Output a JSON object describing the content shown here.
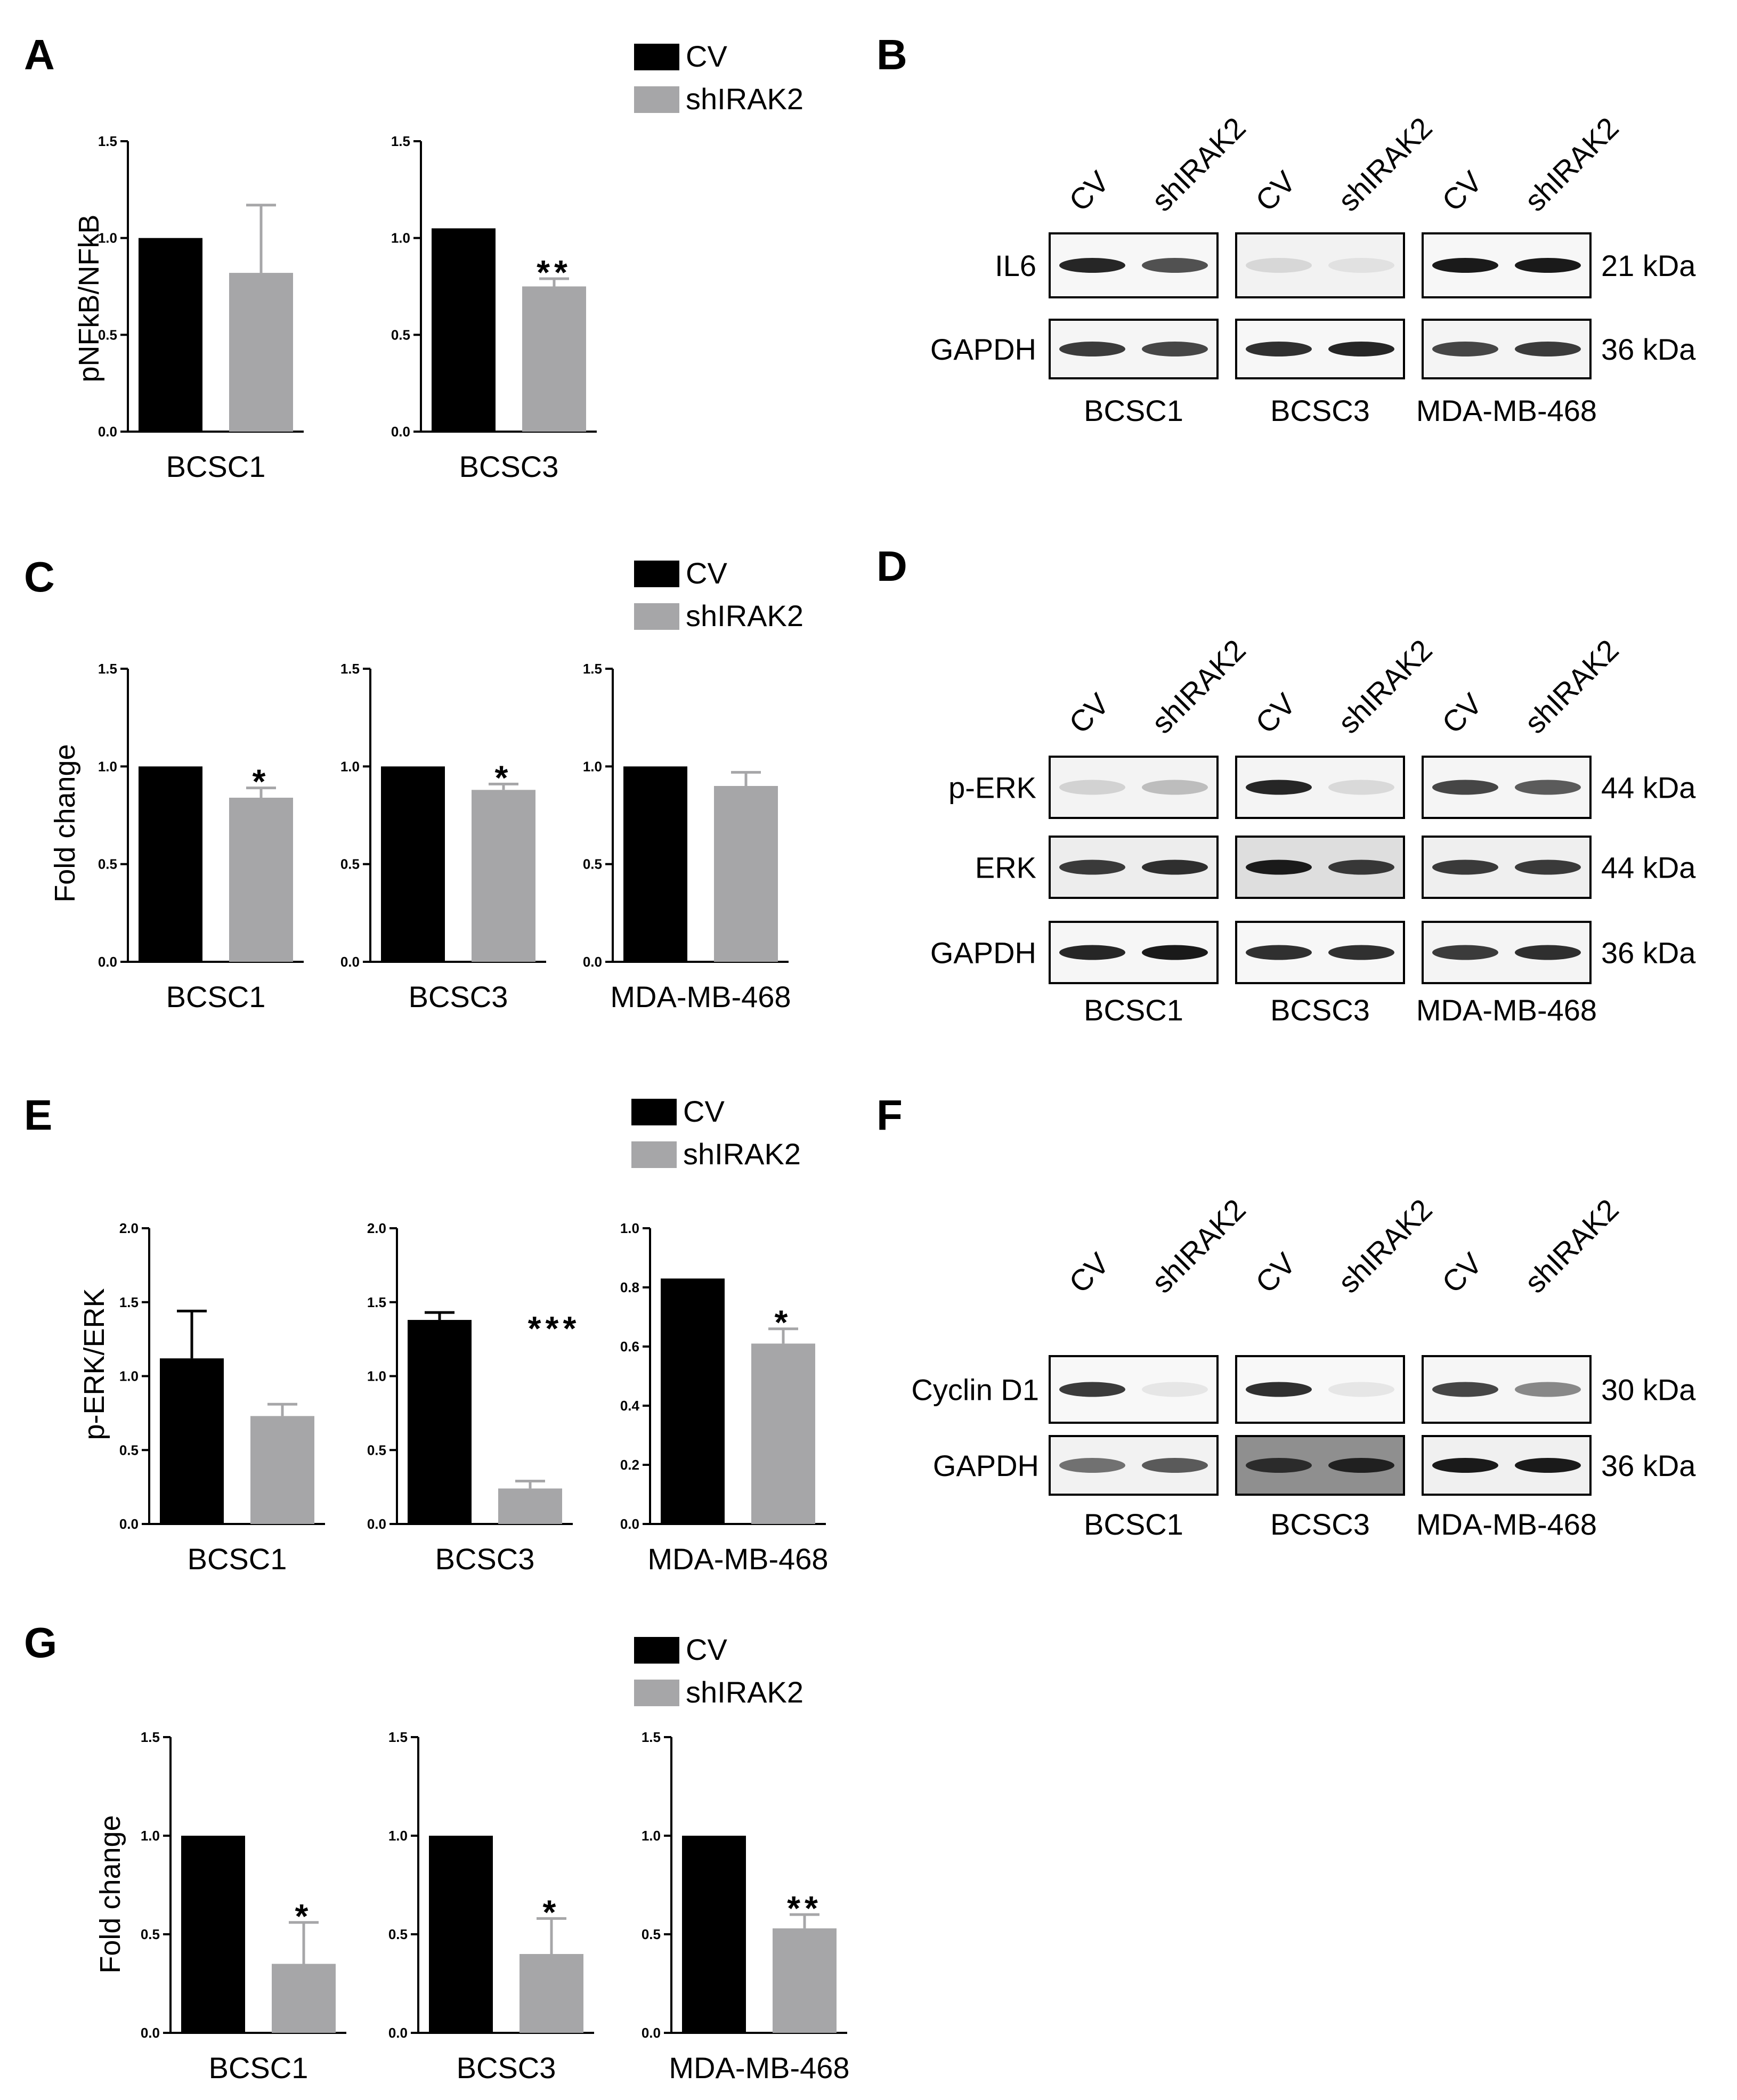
{
  "legend": {
    "cv": "CV",
    "sh": "shIRAK2"
  },
  "colors": {
    "cv": "#000000",
    "sh": "#a6a6a8",
    "text": "#000000"
  },
  "panels": {
    "A": "A",
    "B": "B",
    "C": "C",
    "D": "D",
    "E": "E",
    "F": "F",
    "G": "G"
  },
  "chart_data": [
    {
      "panel": "A",
      "type": "bar",
      "ylabel": "pNFkB/NFkB",
      "categories": [
        "BCSC1",
        "BCSC3"
      ],
      "ylim": [
        0,
        1.5
      ],
      "ticks": [
        "0.0",
        "0.5",
        "1.0",
        "1.5"
      ],
      "series": [
        {
          "name": "CV",
          "values": [
            1.0,
            1.05
          ]
        },
        {
          "name": "shIRAK2",
          "values": [
            0.82,
            0.75
          ]
        }
      ],
      "errors": [
        [
          null,
          0.35
        ],
        [
          null,
          0.04
        ]
      ],
      "significance": [
        "",
        "**"
      ]
    },
    {
      "panel": "C",
      "type": "bar",
      "ylabel": "Fold change",
      "categories": [
        "BCSC1",
        "BCSC3",
        "MDA-MB-468"
      ],
      "ylim": [
        0,
        1.5
      ],
      "ticks": [
        "0.0",
        "0.5",
        "1.0",
        "1.5"
      ],
      "series": [
        {
          "name": "CV",
          "values": [
            1.0,
            1.0,
            1.0
          ]
        },
        {
          "name": "shIRAK2",
          "values": [
            0.84,
            0.88,
            0.9
          ]
        }
      ],
      "errors": [
        [
          null,
          0.05
        ],
        [
          null,
          0.03
        ],
        [
          null,
          0.07
        ]
      ],
      "significance": [
        "*",
        "*",
        ""
      ]
    },
    {
      "panel": "E",
      "type": "bar",
      "ylabel": "p-ERK/ERK",
      "categories": [
        "BCSC1",
        "BCSC3",
        "MDA-MB-468"
      ],
      "ylims": [
        [
          0,
          2.0
        ],
        [
          0,
          2.0
        ],
        [
          0,
          1.0
        ]
      ],
      "ticks": [
        [
          "0.0",
          "0.5",
          "1.0",
          "1.5",
          "2.0"
        ],
        [
          "0.0",
          "0.5",
          "1.0",
          "1.5",
          "2.0"
        ],
        [
          "0.0",
          "0.2",
          "0.4",
          "0.6",
          "0.8",
          "1.0"
        ]
      ],
      "series": [
        {
          "name": "CV",
          "values": [
            1.12,
            1.38,
            0.83
          ]
        },
        {
          "name": "shIRAK2",
          "values": [
            0.73,
            0.24,
            0.61
          ]
        }
      ],
      "errors": [
        [
          0.32,
          0.08
        ],
        [
          0.05,
          0.05
        ],
        [
          null,
          0.05
        ]
      ],
      "significance": [
        "",
        "***",
        "*"
      ]
    },
    {
      "panel": "G",
      "type": "bar",
      "ylabel": "Fold change",
      "categories": [
        "BCSC1",
        "BCSC3",
        "MDA-MB-468"
      ],
      "ylim": [
        0,
        1.5
      ],
      "ticks": [
        "0.0",
        "0.5",
        "1.0",
        "1.5"
      ],
      "series": [
        {
          "name": "CV",
          "values": [
            1.0,
            1.0,
            1.0
          ]
        },
        {
          "name": "shIRAK2",
          "values": [
            0.35,
            0.4,
            0.53
          ]
        }
      ],
      "errors": [
        [
          null,
          0.21
        ],
        [
          null,
          0.18
        ],
        [
          null,
          0.07
        ]
      ],
      "significance": [
        "*",
        "*",
        "**"
      ]
    }
  ],
  "blots": [
    {
      "panel": "B",
      "lanes": [
        "CV",
        "shIRAK2"
      ],
      "cells": [
        "BCSC1",
        "BCSC3",
        "MDA-MB-468"
      ],
      "rows": [
        {
          "label": "IL6",
          "size": "21 kDa"
        },
        {
          "label": "GAPDH",
          "size": "36 kDa"
        }
      ]
    },
    {
      "panel": "D",
      "lanes": [
        "CV",
        "shIRAK2"
      ],
      "cells": [
        "BCSC1",
        "BCSC3",
        "MDA-MB-468"
      ],
      "rows": [
        {
          "label": "p-ERK",
          "size": "44 kDa"
        },
        {
          "label": "ERK",
          "size": "44 kDa"
        },
        {
          "label": "GAPDH",
          "size": "36 kDa"
        }
      ]
    },
    {
      "panel": "F",
      "lanes": [
        "CV",
        "shIRAK2"
      ],
      "cells": [
        "BCSC1",
        "BCSC3",
        "MDA-MB-468"
      ],
      "rows": [
        {
          "label": "Cyclin D1",
          "size": "30 kDa"
        },
        {
          "label": "GAPDH",
          "size": "36 kDa"
        }
      ]
    }
  ]
}
